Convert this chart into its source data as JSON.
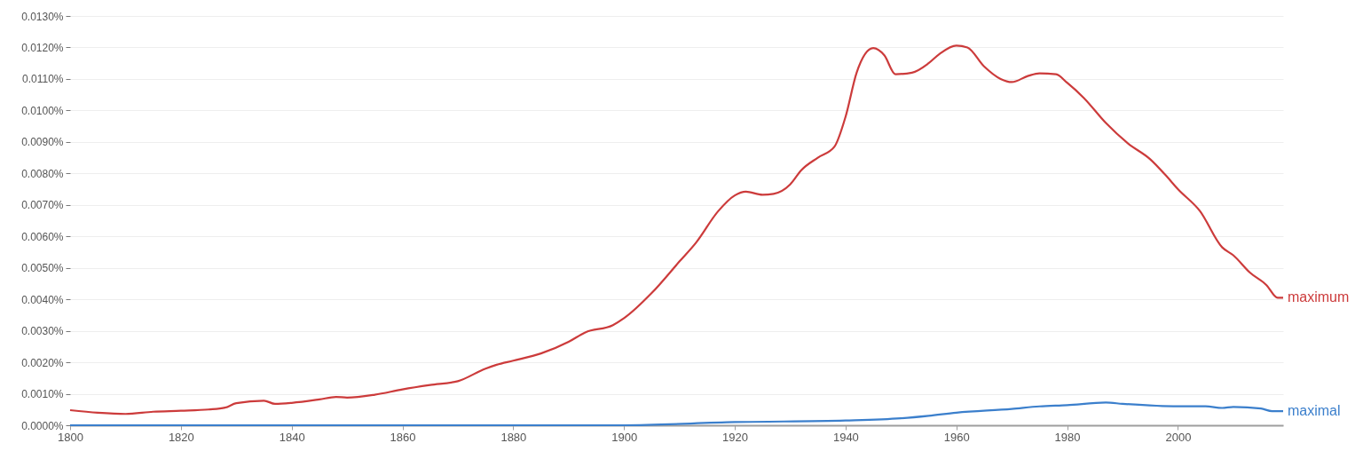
{
  "chart_data": {
    "type": "line",
    "xlim": [
      1800,
      2019
    ],
    "xticks": [
      1800,
      1820,
      1840,
      1860,
      1880,
      1900,
      1920,
      1940,
      1960,
      1980,
      2000
    ],
    "ylim": [
      0,
      0.013
    ],
    "yticks": [
      {
        "value": 0,
        "label": "0.0000%"
      },
      {
        "value": 0.001,
        "label": "0.0010%"
      },
      {
        "value": 0.002,
        "label": "0.0020%"
      },
      {
        "value": 0.003,
        "label": "0.0030%"
      },
      {
        "value": 0.004,
        "label": "0.0040%"
      },
      {
        "value": 0.005,
        "label": "0.0050%"
      },
      {
        "value": 0.006,
        "label": "0.0060%"
      },
      {
        "value": 0.007,
        "label": "0.0070%"
      },
      {
        "value": 0.008,
        "label": "0.0080%"
      },
      {
        "value": 0.009,
        "label": "0.0090%"
      },
      {
        "value": 0.01,
        "label": "0.0100%"
      },
      {
        "value": 0.011,
        "label": "0.0110%"
      },
      {
        "value": 0.012,
        "label": "0.0120%"
      },
      {
        "value": 0.013,
        "label": "0.0130%"
      }
    ],
    "grid": "y",
    "series": [
      {
        "name": "maximum",
        "color": "#cc3b3b",
        "x": [
          1800,
          1805,
          1810,
          1815,
          1820,
          1825,
          1828,
          1830,
          1835,
          1837,
          1840,
          1845,
          1848,
          1850,
          1855,
          1860,
          1865,
          1870,
          1875,
          1877,
          1880,
          1885,
          1890,
          1893,
          1898,
          1900,
          1905,
          1910,
          1913,
          1917,
          1920,
          1922,
          1925,
          1927,
          1930,
          1932,
          1935,
          1938,
          1940,
          1942,
          1945,
          1947,
          1949,
          1952,
          1955,
          1957,
          1960,
          1962,
          1965,
          1968,
          1970,
          1973,
          1975,
          1978,
          1980,
          1983,
          1987,
          1991,
          1995,
          1998,
          2000,
          2004,
          2008,
          2010,
          2013,
          2016,
          2018,
          2019
        ],
        "values": [
          0.00048,
          0.0004,
          0.00036,
          0.00043,
          0.00046,
          0.0005,
          0.00056,
          0.0007,
          0.00078,
          0.00068,
          0.00071,
          0.00082,
          0.0009,
          0.00088,
          0.00097,
          0.00114,
          0.00128,
          0.0014,
          0.0018,
          0.00192,
          0.00205,
          0.00228,
          0.00265,
          0.00295,
          0.00318,
          0.0034,
          0.0042,
          0.0052,
          0.0058,
          0.0068,
          0.0073,
          0.00742,
          0.00732,
          0.00735,
          0.00765,
          0.0081,
          0.0085,
          0.00885,
          0.0098,
          0.0112,
          0.01198,
          0.01175,
          0.01115,
          0.0112,
          0.0115,
          0.0118,
          0.01206,
          0.012,
          0.0114,
          0.011,
          0.0109,
          0.0111,
          0.01118,
          0.01115,
          0.01088,
          0.0104,
          0.0096,
          0.00895,
          0.00845,
          0.0079,
          0.0075,
          0.0068,
          0.00565,
          0.0054,
          0.00485,
          0.00445,
          0.00405,
          0.00405
        ]
      },
      {
        "name": "maximal",
        "color": "#3b7fcc",
        "x": [
          1800,
          1840,
          1880,
          1900,
          1920,
          1940,
          1950,
          1955,
          1960,
          1970,
          1975,
          1980,
          1987,
          1990,
          2000,
          2005,
          2008,
          2010,
          2015,
          2017,
          2019
        ],
        "values": [
          0,
          0,
          0,
          0,
          0.0001,
          0.00015,
          0.00022,
          0.0003,
          0.0004,
          0.00052,
          0.0006,
          0.00064,
          0.00072,
          0.00068,
          0.0006,
          0.0006,
          0.00055,
          0.00058,
          0.00053,
          0.00045,
          0.00045
        ]
      }
    ]
  }
}
